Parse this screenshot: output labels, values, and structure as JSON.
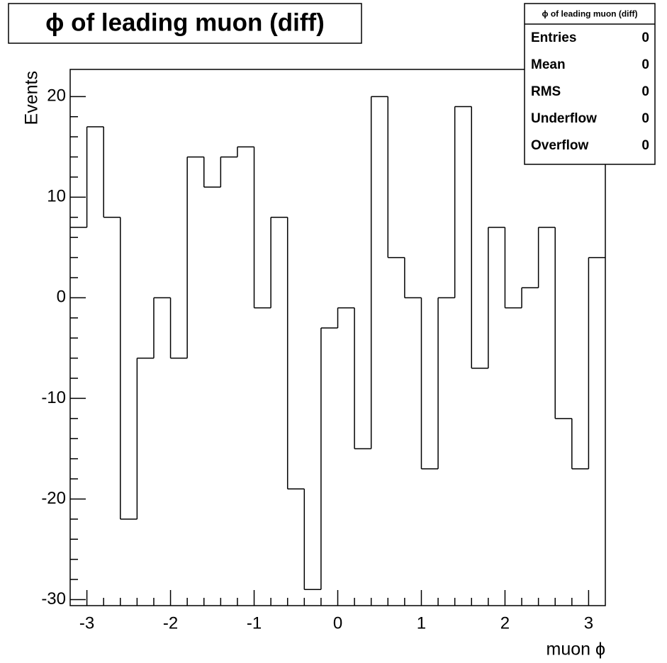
{
  "chart_data": {
    "type": "histogram",
    "title": "ϕ of leading muon (diff)",
    "x_label": "muon ϕ",
    "y_label": "Events",
    "bins": [
      -3.2,
      -3.0,
      -2.8,
      -2.6,
      -2.4,
      -2.2,
      -2.0,
      -1.8,
      -1.6,
      -1.4,
      -1.2,
      -1.0,
      -0.8,
      -0.6,
      -0.4,
      -0.2,
      0,
      0.2,
      0.4,
      0.6,
      0.8,
      1.0,
      1.2,
      1.4,
      1.6,
      1.8,
      2.0,
      2.2,
      2.4,
      2.6,
      2.8,
      3.0,
      3.2
    ],
    "values": [
      7,
      17,
      8,
      -22,
      -6,
      0,
      -6,
      14,
      11,
      14,
      15,
      -1,
      8,
      -19,
      -29,
      -3,
      -1,
      -15,
      20,
      4,
      0,
      -17,
      0,
      19,
      -7,
      7,
      -1,
      1,
      7,
      -12,
      -17,
      4
    ],
    "color": "#000000",
    "xlim": [
      -3.2,
      3.2
    ],
    "xticks": [
      -3,
      -2,
      -1,
      0,
      1,
      2,
      3
    ],
    "ylim": [
      -30.6,
      22.7
    ],
    "yticks": [
      -30,
      -20,
      -10,
      0,
      10,
      20
    ],
    "stats": {
      "title": "ϕ of leading muon (diff)",
      "rows": [
        [
          "Entries",
          "0"
        ],
        [
          "Mean",
          "0"
        ],
        [
          "RMS",
          "0"
        ],
        [
          "Underflow",
          "0"
        ],
        [
          "Overflow",
          "0"
        ]
      ]
    }
  }
}
